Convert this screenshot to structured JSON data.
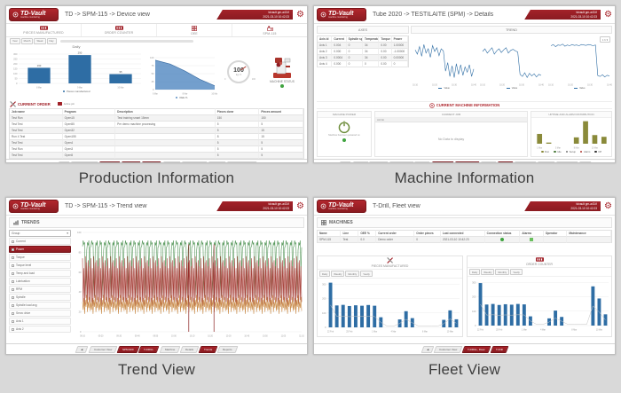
{
  "captions": [
    "Production Information",
    "Machine Information",
    "Trend View",
    "Fleet View"
  ],
  "brand": {
    "logo": "TD-Vault",
    "tagline": "machine monitoring"
  },
  "session": {
    "user": "tdvault gm-a43.fi",
    "datetime": "2021-03-10 10:42:23"
  },
  "colors": {
    "brand_red": "#a02128",
    "chart_blue": "#2e6da4",
    "status_green": "#3fa33f"
  },
  "p1": {
    "title": "TD -> SPM-115 -> Device view",
    "kpis": [
      {
        "label": "PIECES MANUFACTURED"
      },
      {
        "label": "ORDER COUNTER"
      },
      {
        "label": "OEE"
      },
      {
        "label": "SPM-115"
      }
    ],
    "filters": [
      "Year",
      "Month",
      "Week",
      "Day"
    ],
    "daily_chart": {
      "type": "bar",
      "title": "Daily",
      "legend": "Pieces manufactured",
      "categories": [
        "8 Mar",
        "9 Mar",
        "10 Mar"
      ],
      "values": [
        160,
        290,
        95
      ],
      "showValues": true,
      "ymax": 300,
      "yticks": [
        0,
        50,
        100,
        150,
        200,
        250,
        300
      ],
      "color": "#2e6da4"
    },
    "oee_chart": {
      "type": "area",
      "legend": "OEE %",
      "categories": [
        "6 Mar",
        "8 Mar",
        "10 Mar"
      ],
      "values": [
        92,
        80,
        58,
        32,
        12
      ],
      "ymax": 100,
      "yticks": [
        0,
        25,
        50,
        75,
        100
      ],
      "color": "#5b8ec4"
    },
    "gauge": {
      "value": "100",
      "unit": "kg / h",
      "min": "0",
      "max": "200"
    },
    "machine_status": {
      "label": "MACHINE STATUS"
    },
    "order_section": {
      "title": "CURRENT ORDER",
      "chip_label": "Active job"
    },
    "order_table": {
      "cols": [
        "Job name",
        "Program",
        "Description",
        "Pieces done",
        "Pieces amount"
      ],
      "widths": [
        18,
        18,
        34,
        15,
        15
      ],
      "rows": [
        [
          "Test Run",
          "Open15",
          "Test training smart 15mm",
          "150",
          "150"
        ],
        [
          "Test Test",
          "Open55",
          "Per demo machine processing",
          "5",
          "5"
        ],
        [
          "Test Test",
          "Open32",
          "",
          "5",
          "15"
        ],
        [
          "Run 4 Test",
          "Open155",
          "",
          "8",
          "15"
        ],
        [
          "Test Test",
          "Open4",
          "",
          "5",
          "5"
        ],
        [
          "Test Run",
          "Open3",
          "",
          "5",
          "5"
        ],
        [
          "Test Test",
          "Open5",
          "",
          "5",
          "5"
        ]
      ]
    },
    "tabs": [
      {
        "label": "◀"
      },
      {
        "label": "Customer View"
      },
      {
        "label": "SPM-900",
        "red": true
      },
      {
        "label": "T-DRILL",
        "red": true
      },
      {
        "label": "Machine",
        "red": true
      },
      {
        "label": "Details"
      },
      {
        "label": "Configuration"
      },
      {
        "label": "Trends"
      },
      {
        "label": "Reports & Events"
      }
    ]
  },
  "p2": {
    "title": "Tube 2020 -> TESTILAITE (SPM) -> Details",
    "sections": {
      "axes": "AXES",
      "trend": "TREND"
    },
    "range": "1 h ▾",
    "axes_table": {
      "cols": [
        "Axis id",
        "Current",
        "Spindle speed",
        "Temperature",
        "Torque",
        "Power"
      ],
      "widths": [
        16,
        16,
        18,
        18,
        14,
        18
      ],
      "rows": [
        [
          "Axis 1",
          "0.004",
          "0",
          "34",
          "0.00",
          "1.00000"
        ],
        [
          "Axis 2",
          "0.000",
          "0",
          "34",
          "0.00",
          "-1.00000"
        ],
        [
          "Axis 3",
          "0.0004",
          "0",
          "34",
          "0.00",
          "0.00000"
        ],
        [
          "Axis 4",
          "0.000",
          "0",
          "0",
          "0.00",
          "0"
        ]
      ]
    },
    "trend_legend": "Value",
    "trend_charts": [
      {
        "type": "line",
        "ymax": 80,
        "color": "#2e6da4",
        "values": [
          58,
          50,
          64,
          46,
          68,
          52,
          60,
          44,
          66,
          55,
          62,
          47,
          60,
          56,
          18,
          34,
          8,
          28,
          6,
          32,
          12,
          30,
          10,
          26,
          16,
          30,
          8,
          22
        ],
        "xticks": [
          "10:10",
          "10:20",
          "10:30",
          "10:40"
        ]
      },
      {
        "type": "line",
        "ymax": 80,
        "color": "#2e6da4",
        "values": [
          55,
          60,
          52,
          57,
          62,
          50,
          56,
          60,
          53,
          58,
          62,
          52,
          57,
          59,
          56,
          54,
          12,
          8,
          15,
          6,
          14,
          9,
          13,
          7,
          12,
          10
        ],
        "xticks": [
          "10:10",
          "10:20",
          "10:30",
          "10:40"
        ]
      },
      {
        "type": "line",
        "ymax": 100,
        "color": "#2e6da4",
        "values": [
          82,
          85,
          80,
          84,
          83,
          86,
          81,
          84,
          82,
          85,
          83,
          84,
          82,
          85,
          84,
          83,
          85,
          84,
          82,
          84,
          12,
          10,
          14,
          9,
          13,
          11
        ],
        "xticks": [
          "10:10",
          "10:20",
          "10:30",
          "10:40"
        ]
      }
    ],
    "current_info": {
      "title": "CURRENT MACHINE INFORMATION"
    },
    "power_box": {
      "title": "MACHINE POWER",
      "caption": "Machine has been powered on"
    },
    "job_box": {
      "title": "CURRENT JOB",
      "strip": "Job list",
      "empty": "No Data to display"
    },
    "dist_box": {
      "title": "UPTIME AND ALARM DISTRIBUTION"
    },
    "dist_chart": {
      "type": "bar",
      "color": "#8a8a3a",
      "ymax": 80,
      "values": [
        34,
        4,
        0,
        0,
        22,
        78,
        30,
        24
      ],
      "categories": [
        "1 Mar",
        "",
        "5 Mar",
        "",
        "8 Mar",
        "",
        "10 Mar",
        ""
      ]
    },
    "dist_legend": [
      {
        "label": "Run",
        "color": "#8a8a3a"
      },
      {
        "label": "Idle",
        "color": "#4a7a3a"
      },
      {
        "label": "Setup",
        "color": "#777777"
      },
      {
        "label": "Alarm",
        "color": "#b03a34"
      },
      {
        "label": "Off",
        "color": "#333333"
      }
    ],
    "tabs": [
      {
        "label": "◀"
      },
      {
        "label": "Fleet"
      },
      {
        "label": "My fleet"
      },
      {
        "label": "Tube factory"
      },
      {
        "label": "Lines"
      },
      {
        "label": "Tube 2020",
        "red": true
      },
      {
        "label": "TESTILAITE",
        "red": true
      },
      {
        "label": "Items"
      },
      {
        "label": "SPM",
        "red": true
      },
      {
        "label": "Production"
      },
      {
        "label": "Trends"
      },
      {
        "label": "Event logs"
      },
      {
        "label": "..."
      }
    ]
  },
  "p3": {
    "title": "TD -> SPM-115 -> Trend view",
    "section": "TRENDS",
    "group_select": "Group",
    "signals": [
      {
        "label": "Current"
      },
      {
        "label": "Power",
        "active": true
      },
      {
        "label": "Torque"
      },
      {
        "label": "Torque level"
      },
      {
        "label": "Temp and load"
      },
      {
        "label": "Lubrication"
      },
      {
        "label": "RPM"
      },
      {
        "label": "Spindle"
      },
      {
        "label": "Spindle load avg"
      },
      {
        "label": "Servo drive"
      },
      {
        "label": "Axis 1"
      },
      {
        "label": "Axis 2"
      }
    ],
    "trend_chart": {
      "type": "pattern-line",
      "repeat": 26,
      "ymax": 100,
      "yticks": [
        0,
        20,
        40,
        60,
        80,
        100
      ],
      "series": [
        {
          "name": "Current",
          "color": "#55975a",
          "pattern": [
            86,
            92,
            88,
            90,
            52,
            36,
            82,
            90,
            87,
            92,
            58,
            85
          ]
        },
        {
          "name": "Power",
          "color": "#a8433c",
          "pattern": [
            74,
            30,
            64,
            26,
            76,
            34,
            70,
            28,
            72,
            32,
            66,
            30
          ]
        },
        {
          "name": "Torque",
          "color": "#c98a47",
          "pattern": [
            30,
            22,
            34,
            18,
            32,
            25,
            37,
            20,
            30,
            24,
            35,
            21
          ]
        }
      ],
      "vlines": [
        0.485,
        0.6
      ],
      "xticks": [
        "09:10",
        "09:20",
        "09:30",
        "09:40",
        "09:50",
        "10:00",
        "10:10",
        "10:20",
        "10:30",
        "10:40",
        "10:50",
        "11:00",
        "11:10"
      ]
    },
    "legend": [
      {
        "label": "Current",
        "color": "#55975a"
      },
      {
        "label": "Power",
        "color": "#a8433c"
      },
      {
        "label": "Torque",
        "color": "#c98a47"
      },
      {
        "label": "Alarm",
        "color": "#8a1f1f"
      }
    ],
    "tabs": [
      {
        "label": "◀"
      },
      {
        "label": "Customer View"
      },
      {
        "label": "SPM-900",
        "red": true
      },
      {
        "label": "T-DRILL",
        "red": true
      },
      {
        "label": "Machine"
      },
      {
        "label": "Details"
      },
      {
        "label": "Trends",
        "red": true
      },
      {
        "label": "Reports"
      }
    ]
  },
  "p4": {
    "title": "T-Drill, Fleet view",
    "section": "MACHINES",
    "machines_table": {
      "cols": [
        "Name",
        "Line",
        "OEE %",
        "Current order",
        "Order pieces",
        "Last connected",
        "Connection status",
        "Alarms",
        "Operator",
        "Maintenance"
      ],
      "widths": [
        8,
        6,
        6,
        13,
        9,
        15,
        12,
        8,
        8,
        15
      ],
      "rows": [
        [
          "SPM-115",
          "Test",
          "0.0",
          "Demo order",
          "0",
          "2021-03-10 10:42:23",
          "__dot",
          "__sq",
          "",
          ""
        ]
      ]
    },
    "cards": [
      {
        "title": "PIECES MANUFACTURED",
        "filters": [
          "Daily",
          "Weekly",
          "Monthly",
          "Yearly"
        ],
        "chart": {
          "type": "bar",
          "color": "#2e6da4",
          "ymax": 320,
          "trend": true,
          "yticks": [
            0,
            100,
            200,
            300
          ],
          "values": [
            310,
            152,
            156,
            148,
            153,
            150,
            155,
            150,
            70,
            0,
            0,
            55,
            112,
            64,
            0,
            0,
            0,
            0,
            52,
            118,
            56
          ],
          "categories": [
            "22 Feb",
            "",
            "",
            "25 Feb",
            "",
            "",
            "",
            "1 Mar",
            "",
            "",
            "4 Mar",
            "",
            "",
            "",
            "",
            "8 Mar",
            "",
            "",
            "",
            "10 Mar",
            ""
          ]
        }
      },
      {
        "title": "ORDER COUNTER",
        "filters": [
          "Daily",
          "Weekly",
          "Monthly",
          "Yearly"
        ],
        "chart": {
          "type": "bar",
          "color": "#2e6da4",
          "ymax": 320,
          "trend": true,
          "yticks": [
            0,
            100,
            200,
            300
          ],
          "values": [
            295,
            146,
            150,
            143,
            148,
            145,
            150,
            147,
            64,
            0,
            0,
            50,
            104,
            60,
            0,
            0,
            0,
            0,
            272,
            188,
            78
          ],
          "categories": [
            "22 Feb",
            "",
            "",
            "25 Feb",
            "",
            "",
            "",
            "1 Mar",
            "",
            "",
            "4 Mar",
            "",
            "",
            "",
            "",
            "8 Mar",
            "",
            "",
            "",
            "10 Mar",
            ""
          ]
        }
      }
    ],
    "tabs": [
      {
        "label": "◀"
      },
      {
        "label": "Customer View"
      },
      {
        "label": "T-DRILL, Fleet",
        "red": true
      },
      {
        "label": "T-Drill",
        "red": true
      }
    ]
  }
}
